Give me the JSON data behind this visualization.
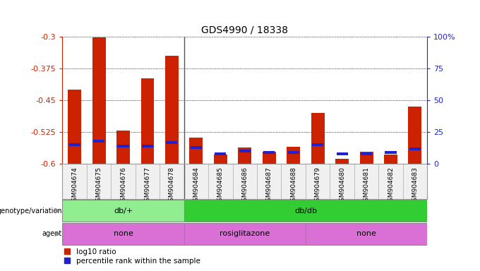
{
  "title": "GDS4990 / 18338",
  "samples": [
    "GSM904674",
    "GSM904675",
    "GSM904676",
    "GSM904677",
    "GSM904678",
    "GSM904684",
    "GSM904685",
    "GSM904686",
    "GSM904687",
    "GSM904688",
    "GSM904679",
    "GSM904680",
    "GSM904681",
    "GSM904682",
    "GSM904683"
  ],
  "log10_ratio": [
    -0.425,
    -0.302,
    -0.522,
    -0.398,
    -0.345,
    -0.538,
    -0.578,
    -0.562,
    -0.571,
    -0.56,
    -0.48,
    -0.588,
    -0.572,
    -0.578,
    -0.464
  ],
  "percentile_rank": [
    15,
    18,
    14,
    14,
    17,
    13,
    8,
    10,
    9,
    9,
    15,
    8,
    8,
    9,
    12
  ],
  "ylim_left": [
    -0.6,
    -0.3
  ],
  "ylim_right": [
    0,
    100
  ],
  "yticks_left": [
    -0.6,
    -0.525,
    -0.45,
    -0.375,
    -0.3
  ],
  "yticks_right": [
    0,
    25,
    50,
    75,
    100
  ],
  "bar_color_red": "#CC2200",
  "bar_color_blue": "#2222CC",
  "genotype_groups": [
    {
      "label": "db/+",
      "start": 0,
      "end": 5,
      "color": "#90EE90"
    },
    {
      "label": "db/db",
      "start": 5,
      "end": 15,
      "color": "#32CD32"
    }
  ],
  "agent_groups": [
    {
      "label": "none",
      "start": 0,
      "end": 5,
      "color": "#DA70D6"
    },
    {
      "label": "rosiglitazone",
      "start": 5,
      "end": 10,
      "color": "#DA70D6"
    },
    {
      "label": "none",
      "start": 10,
      "end": 15,
      "color": "#DA70D6"
    }
  ],
  "legend_red_label": "log10 ratio",
  "legend_blue_label": "percentile rank within the sample",
  "bar_width": 0.55,
  "left_axis_color": "#CC2200",
  "right_axis_color": "#2222CC",
  "bg_color": "#F0F0F0"
}
